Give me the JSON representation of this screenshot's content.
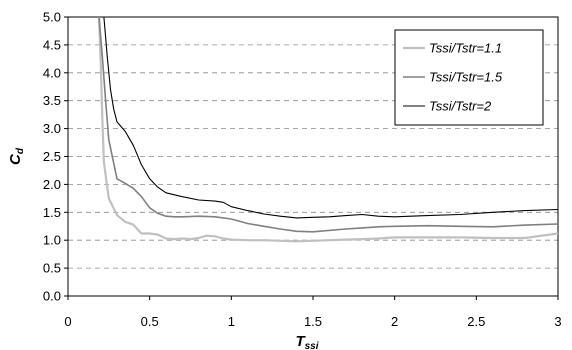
{
  "chart_data": {
    "type": "line",
    "xlabel": "T",
    "xlabel_sub": "ssi",
    "ylabel": "C",
    "ylabel_sub": "d",
    "xlim": [
      0,
      3
    ],
    "ylim": [
      0,
      5
    ],
    "xticks": [
      "0",
      "0.5",
      "1",
      "1.5",
      "2",
      "2.5",
      "3"
    ],
    "yticks": [
      "0.0",
      "0.5",
      "1.0",
      "1.5",
      "2.0",
      "2.5",
      "3.0",
      "3.5",
      "4.0",
      "4.5",
      "5.0"
    ],
    "grid": "horizontal-dashed",
    "legend_position": "top-right",
    "series": [
      {
        "name": "Tssi/Tstr=1.1",
        "color": "#c0c0c0",
        "x": [
          0.19,
          0.2,
          0.21,
          0.22,
          0.25,
          0.3,
          0.35,
          0.4,
          0.45,
          0.5,
          0.55,
          0.6,
          0.65,
          0.7,
          0.75,
          0.8,
          0.85,
          0.9,
          0.95,
          1.0,
          1.1,
          1.2,
          1.3,
          1.4,
          1.5,
          1.6,
          1.7,
          1.8,
          1.9,
          2.0,
          2.2,
          2.4,
          2.6,
          2.8,
          2.9,
          3.0
        ],
        "y": [
          5.0,
          4.2,
          3.2,
          2.4,
          1.75,
          1.45,
          1.33,
          1.28,
          1.12,
          1.12,
          1.1,
          1.03,
          1.02,
          1.03,
          1.02,
          1.04,
          1.08,
          1.07,
          1.03,
          1.01,
          1.0,
          1.0,
          0.99,
          0.98,
          0.99,
          1.0,
          1.01,
          1.02,
          1.03,
          1.05,
          1.05,
          1.05,
          1.04,
          1.04,
          1.08,
          1.12
        ]
      },
      {
        "name": "Tssi/Tstr=1.5",
        "color": "#808080",
        "x": [
          0.19,
          0.21,
          0.23,
          0.25,
          0.3,
          0.35,
          0.4,
          0.45,
          0.5,
          0.55,
          0.6,
          0.65,
          0.7,
          0.8,
          0.9,
          1.0,
          1.1,
          1.2,
          1.3,
          1.4,
          1.5,
          1.7,
          1.8,
          1.9,
          2.0,
          2.2,
          2.4,
          2.6,
          2.8,
          3.0
        ],
        "y": [
          5.0,
          4.3,
          3.5,
          2.8,
          2.1,
          2.02,
          1.93,
          1.78,
          1.58,
          1.48,
          1.43,
          1.42,
          1.42,
          1.43,
          1.42,
          1.38,
          1.3,
          1.25,
          1.2,
          1.16,
          1.15,
          1.2,
          1.22,
          1.24,
          1.25,
          1.26,
          1.25,
          1.24,
          1.27,
          1.29
        ]
      },
      {
        "name": "Tssi/Tstr=2",
        "color": "#000000",
        "x": [
          0.22,
          0.24,
          0.26,
          0.28,
          0.3,
          0.35,
          0.4,
          0.45,
          0.5,
          0.55,
          0.6,
          0.7,
          0.8,
          0.9,
          0.95,
          1.0,
          1.1,
          1.2,
          1.3,
          1.4,
          1.5,
          1.6,
          1.7,
          1.8,
          1.9,
          2.0,
          2.2,
          2.4,
          2.6,
          2.8,
          3.0
        ],
        "y": [
          5.0,
          4.3,
          3.7,
          3.35,
          3.12,
          2.95,
          2.7,
          2.35,
          2.1,
          1.95,
          1.85,
          1.78,
          1.72,
          1.7,
          1.68,
          1.6,
          1.53,
          1.47,
          1.43,
          1.4,
          1.41,
          1.42,
          1.44,
          1.46,
          1.43,
          1.42,
          1.44,
          1.46,
          1.5,
          1.53,
          1.55
        ]
      }
    ]
  }
}
